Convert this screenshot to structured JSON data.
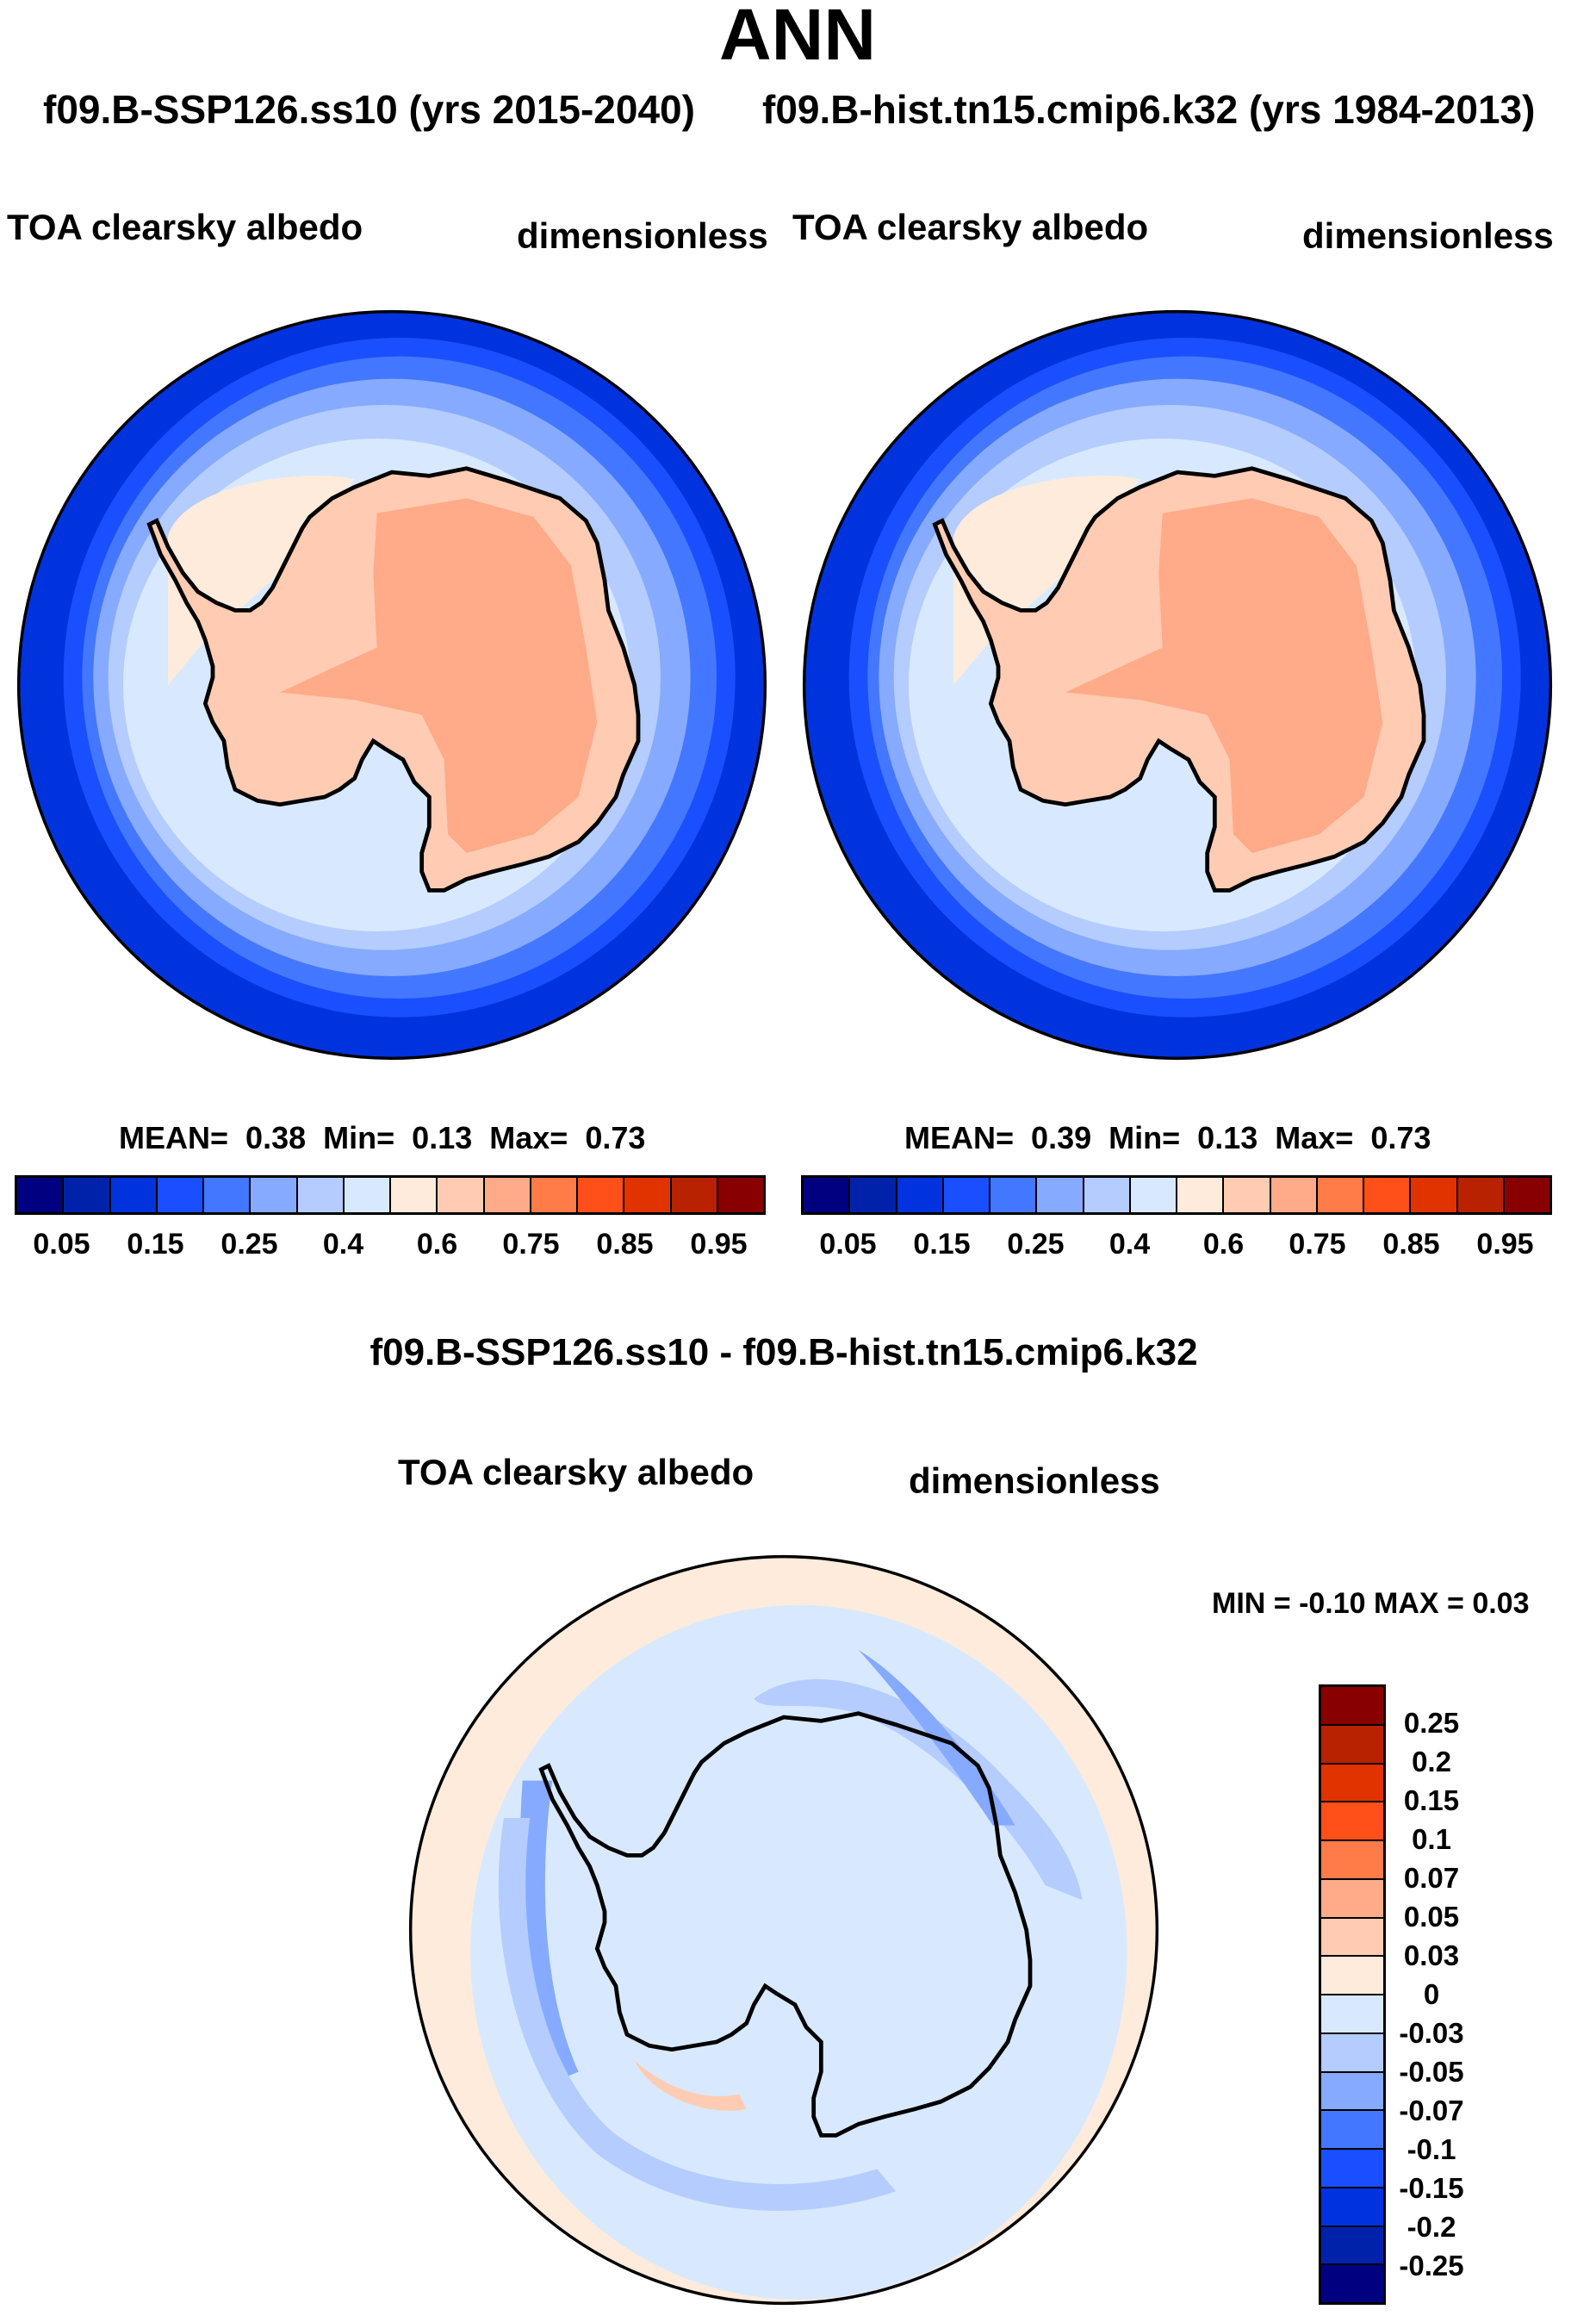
{
  "header": {
    "title": "ANN",
    "left_case": "f09.B-SSP126.ss10 (yrs 2015-2040)",
    "right_case": "f09.B-hist.tn15.cmip6.k32 (yrs 1984-2013)"
  },
  "panels": [
    {
      "variable": "TOA clearsky albedo",
      "units": "dimensionless",
      "stats": {
        "mean_label": "MEAN=",
        "mean": "0.38",
        "min_label": "Min=",
        "min": "0.13",
        "max_label": "Max=",
        "max": "0.73"
      }
    },
    {
      "variable": "TOA clearsky albedo",
      "units": "dimensionless",
      "stats": {
        "mean_label": "MEAN=",
        "mean": "0.39",
        "min_label": "Min=",
        "min": "0.13",
        "max_label": "Max=",
        "max": "0.73"
      }
    }
  ],
  "diff": {
    "title": "f09.B-SSP126.ss10 - f09.B-hist.tn15.cmip6.k32",
    "variable": "TOA clearsky albedo",
    "units": "dimensionless",
    "minmax": "MIN =  -0.10 MAX =   0.03"
  },
  "chart_data": [
    {
      "type": "heatmap",
      "projection": "south-polar-stereographic",
      "title": "TOA clearsky albedo",
      "units": "dimensionless",
      "mean": 0.38,
      "min": 0.13,
      "max": 0.73,
      "levels": [
        0.05,
        0.1,
        0.15,
        0.2,
        0.25,
        0.3,
        0.4,
        0.5,
        0.6,
        0.7,
        0.75,
        0.8,
        0.85,
        0.9,
        0.95
      ],
      "tick_labels": [
        "0.05",
        "0.15",
        "0.25",
        "0.4",
        "0.6",
        "0.75",
        "0.85",
        "0.95"
      ]
    },
    {
      "type": "heatmap",
      "projection": "south-polar-stereographic",
      "title": "TOA clearsky albedo",
      "units": "dimensionless",
      "mean": 0.39,
      "min": 0.13,
      "max": 0.73,
      "levels": [
        0.05,
        0.1,
        0.15,
        0.2,
        0.25,
        0.3,
        0.4,
        0.5,
        0.6,
        0.7,
        0.75,
        0.8,
        0.85,
        0.9,
        0.95
      ],
      "tick_labels": [
        "0.05",
        "0.15",
        "0.25",
        "0.4",
        "0.6",
        "0.75",
        "0.85",
        "0.95"
      ]
    },
    {
      "type": "heatmap",
      "projection": "south-polar-stereographic",
      "title": "TOA clearsky albedo difference",
      "units": "dimensionless",
      "min": -0.1,
      "max": 0.03,
      "levels": [
        0.25,
        0.2,
        0.15,
        0.1,
        0.07,
        0.05,
        0.03,
        0,
        -0.03,
        -0.05,
        -0.07,
        -0.1,
        -0.15,
        -0.2,
        -0.25
      ],
      "tick_labels": [
        "0.25",
        "0.2",
        "0.15",
        "0.1",
        "0.07",
        "0.05",
        "0.03",
        "0",
        "-0.03",
        "-0.05",
        "-0.07",
        "-0.1",
        "-0.15",
        "-0.2",
        "-0.25"
      ]
    }
  ],
  "colors": [
    "#000080",
    "#0022AA",
    "#0033DD",
    "#1A4FFF",
    "#4477FF",
    "#85AAFF",
    "#B4CCFF",
    "#D8E9FF",
    "#FFEBDB",
    "#FFCCB3",
    "#FFAA88",
    "#FF7B47",
    "#FF5019",
    "#E03300",
    "#B82200",
    "#880000"
  ]
}
